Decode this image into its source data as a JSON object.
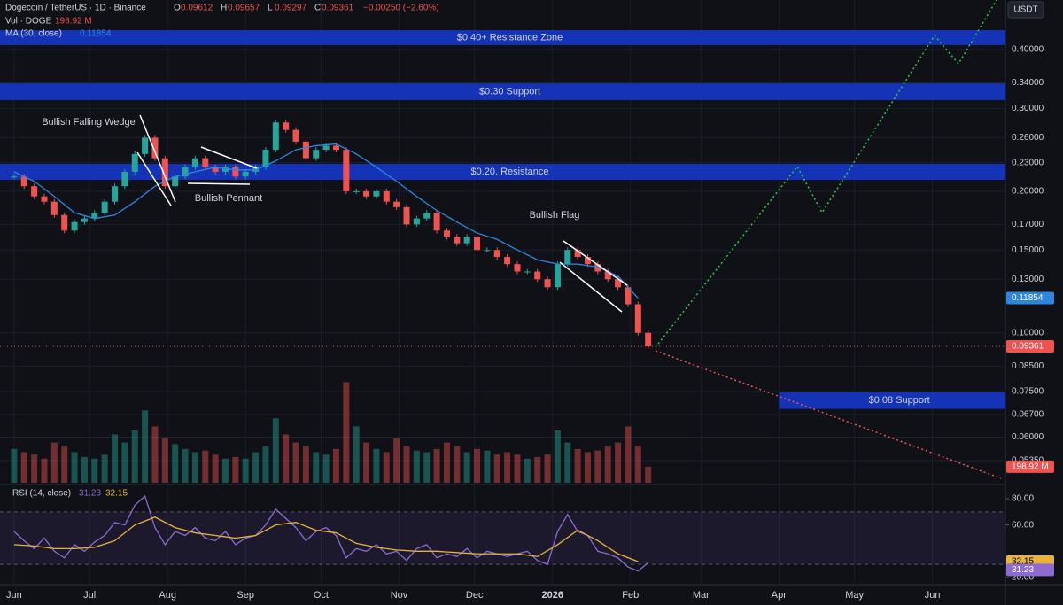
{
  "header": {
    "title": "Dogecoin / TetherUS · 1D · Binance",
    "ohlc": [
      [
        "O",
        "0.09612"
      ],
      [
        "H",
        "0.09657"
      ],
      [
        "L",
        "0.09297"
      ],
      [
        "C"
      ]
    ],
    "change": "−0.00250 (−2.60%)",
    "vol": "Vol · DOGE",
    "ma": "MA (30, close)",
    "rsi": "RSI (14, close)"
  },
  "currency": "USDT",
  "chart_data": {
    "type": "candlestick",
    "log_scale": true,
    "grid": true,
    "x": [
      0,
      4,
      8,
      12,
      16,
      20,
      24,
      28,
      32,
      36,
      40,
      44,
      48,
      52,
      56,
      60,
      64,
      68,
      72,
      76,
      80,
      84,
      88,
      92,
      96,
      100,
      104,
      108,
      112,
      116,
      120,
      124,
      128,
      132,
      136,
      140,
      144,
      148,
      152,
      156,
      160,
      164,
      168,
      172,
      176,
      180,
      184,
      188,
      192,
      196,
      200,
      204,
      208,
      212,
      216,
      220,
      224,
      228,
      232,
      236,
      240,
      244,
      248,
      252
    ],
    "close": [
      0.215,
      0.205,
      0.195,
      0.19,
      0.178,
      0.165,
      0.172,
      0.175,
      0.18,
      0.19,
      0.205,
      0.22,
      0.24,
      0.26,
      0.235,
      0.205,
      0.215,
      0.225,
      0.235,
      0.225,
      0.22,
      0.225,
      0.215,
      0.22,
      0.225,
      0.245,
      0.28,
      0.27,
      0.255,
      0.235,
      0.245,
      0.25,
      0.245,
      0.2,
      0.2,
      0.195,
      0.2,
      0.19,
      0.185,
      0.17,
      0.175,
      0.18,
      0.165,
      0.16,
      0.155,
      0.16,
      0.15,
      0.15,
      0.145,
      0.14,
      0.135,
      0.135,
      0.13,
      0.125,
      0.14,
      0.15,
      0.145,
      0.14,
      0.135,
      0.13,
      0.125,
      0.115,
      0.1,
      0.09361
    ],
    "up_color": "#26a69a",
    "down_color": "#ef5350",
    "ma": {
      "color": "#2e86de",
      "x": [
        0,
        8,
        16,
        24,
        32,
        40,
        48,
        56,
        64,
        72,
        80,
        88,
        96,
        104,
        112,
        120,
        128,
        136,
        144,
        152,
        160,
        168,
        176,
        184,
        192,
        200,
        208,
        216,
        224,
        232,
        240,
        248
      ],
      "values": [
        0.22,
        0.21,
        0.195,
        0.18,
        0.175,
        0.178,
        0.19,
        0.205,
        0.215,
        0.22,
        0.225,
        0.222,
        0.222,
        0.232,
        0.245,
        0.25,
        0.252,
        0.24,
        0.225,
        0.21,
        0.195,
        0.182,
        0.172,
        0.163,
        0.158,
        0.15,
        0.143,
        0.14,
        0.14,
        0.138,
        0.132,
        0.11854
      ]
    },
    "volume": {
      "ylim": [
        0,
        6000
      ],
      "values": [
        420,
        380,
        350,
        300,
        500,
        450,
        380,
        320,
        300,
        350,
        600,
        500,
        650,
        900,
        700,
        550,
        480,
        420,
        380,
        400,
        350,
        300,
        320,
        300,
        380,
        450,
        800,
        600,
        500,
        450,
        380,
        350,
        420,
        1250,
        700,
        500,
        420,
        380,
        550,
        450,
        400,
        380,
        420,
        500,
        450,
        380,
        420,
        400,
        350,
        380,
        350,
        300,
        320,
        350,
        650,
        500,
        420,
        380,
        400,
        450,
        500,
        700,
        450,
        198.92
      ],
      "value_labels": [
        null,
        null,
        null,
        null,
        null,
        null,
        null,
        null,
        null,
        null,
        null,
        null,
        null,
        null,
        null,
        null,
        null,
        null,
        null,
        null,
        null,
        null,
        null,
        null,
        null,
        null,
        null,
        null,
        null,
        null,
        null,
        null,
        null,
        null,
        null,
        null,
        null,
        null,
        null,
        null,
        null,
        null,
        null,
        null,
        null,
        null,
        null,
        null,
        null,
        null,
        null,
        null,
        null,
        null,
        null,
        null,
        null,
        null,
        null,
        null,
        null,
        null,
        null,
        "198.92 M"
      ]
    },
    "xlim": [
      -5.6,
      394
    ],
    "ylim": [
      0.048,
      0.51
    ],
    "xticks": [
      {
        "value": 0,
        "label": "Jun"
      },
      {
        "value": 30,
        "label": "Jul"
      },
      {
        "value": 61,
        "label": "Aug"
      },
      {
        "value": 92,
        "label": "Sep"
      },
      {
        "value": 122,
        "label": "Oct"
      },
      {
        "value": 153,
        "label": "Nov"
      },
      {
        "value": 183,
        "label": "Dec"
      },
      {
        "value": 214,
        "label": "2026"
      },
      {
        "value": 245,
        "label": "Feb"
      },
      {
        "value": 273,
        "label": "Mar"
      },
      {
        "value": 304,
        "label": "Apr"
      },
      {
        "value": 334,
        "label": "May"
      },
      {
        "value": 365,
        "label": "Jun"
      }
    ],
    "yticks": [
      {
        "value": 0.4,
        "label": "0.40000"
      },
      {
        "value": 0.34,
        "label": "0.34000"
      },
      {
        "value": 0.3,
        "label": "0.30000"
      },
      {
        "value": 0.26,
        "label": "0.26000"
      },
      {
        "value": 0.23,
        "label": "0.23000"
      },
      {
        "value": 0.2,
        "label": "0.20000"
      },
      {
        "value": 0.17,
        "label": "0.17000"
      },
      {
        "value": 0.15,
        "label": "0.15000"
      },
      {
        "value": 0.13,
        "label": "0.13000"
      },
      {
        "value": 0.1,
        "label": "0.10000"
      },
      {
        "value": 0.085,
        "label": "0.08500"
      },
      {
        "value": 0.075,
        "label": "0.07500"
      },
      {
        "value": 0.067,
        "label": "0.06700"
      },
      {
        "value": 0.06,
        "label": "0.06000"
      },
      {
        "value": 0.0535,
        "label": "0.05350"
      }
    ],
    "zones": [
      {
        "label": "$0.40+ Resistance Zone",
        "range": [
          0.409,
          0.44
        ]
      },
      {
        "label": "$0.30 Support",
        "range": [
          0.3125,
          0.339
        ]
      },
      {
        "label": "$0.20. Resistance",
        "range": [
          0.2115,
          0.2287
        ]
      },
      {
        "label": "$0.08 Support",
        "range": [
          0.0689,
          0.0748
        ],
        "start": 304
      }
    ],
    "annotations": [
      "Bullish Falling Wedge",
      "Bullish Pennant",
      "Bullish Flag"
    ],
    "rsi": {
      "ylim": [
        14.6,
        90.1
      ],
      "bands": [
        70,
        30
      ],
      "color": "#8e6bd1",
      "values": [
        55,
        48,
        42,
        50,
        40,
        35,
        45,
        40,
        47,
        52,
        62,
        60,
        75,
        82,
        58,
        45,
        55,
        52,
        58,
        50,
        48,
        55,
        45,
        50,
        52,
        60,
        72,
        65,
        58,
        48,
        55,
        58,
        52,
        35,
        42,
        40,
        45,
        38,
        40,
        33,
        42,
        45,
        35,
        38,
        36,
        42,
        35,
        40,
        38,
        36,
        38,
        40,
        33,
        30,
        55,
        68,
        55,
        52,
        40,
        38,
        35,
        28,
        25,
        31.23
      ],
      "ma_color": "#e8b43a",
      "ma_x": [
        0,
        8,
        16,
        24,
        32,
        40,
        48,
        56,
        64,
        72,
        80,
        88,
        96,
        104,
        112,
        120,
        128,
        136,
        144,
        152,
        160,
        168,
        176,
        184,
        192,
        200,
        208,
        216,
        224,
        232,
        240,
        248
      ],
      "ma_values": [
        45,
        44,
        42,
        42,
        43,
        48,
        60,
        66,
        58,
        54,
        52,
        50,
        52,
        60,
        62,
        56,
        54,
        46,
        43,
        41,
        40,
        40,
        39,
        38,
        38,
        38,
        36,
        45,
        56,
        48,
        38,
        32.15
      ],
      "yticks": [
        {
          "value": 80,
          "label": "80.00"
        },
        {
          "value": 60,
          "label": "60.00"
        },
        {
          "value": 20,
          "label": "20.00"
        }
      ]
    }
  }
}
